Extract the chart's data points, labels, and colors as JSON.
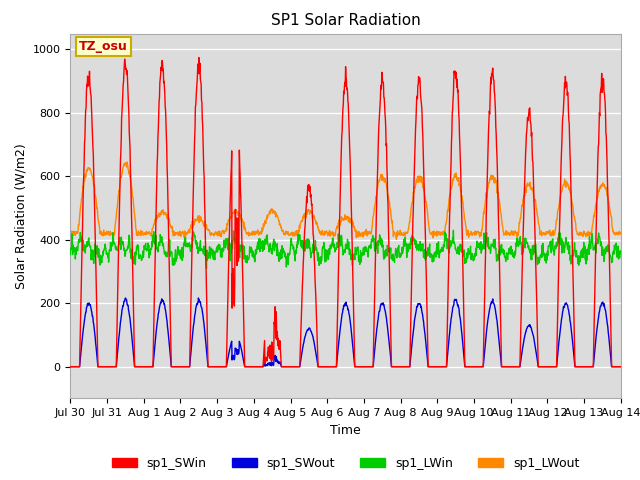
{
  "title": "SP1 Solar Radiation",
  "xlabel": "Time",
  "ylabel": "Solar Radiation (W/m2)",
  "ylim": [
    -100,
    1050
  ],
  "bg_color": "#dcdcdc",
  "grid_color": "#ffffff",
  "annotation_text": "TZ_osu",
  "annotation_bg": "#ffffcc",
  "annotation_border": "#ccaa00",
  "legend": [
    "sp1_SWin",
    "sp1_SWout",
    "sp1_LWin",
    "sp1_LWout"
  ],
  "colors": [
    "#ff0000",
    "#0000dd",
    "#00cc00",
    "#ff8800"
  ],
  "dt_hours": 0.25
}
